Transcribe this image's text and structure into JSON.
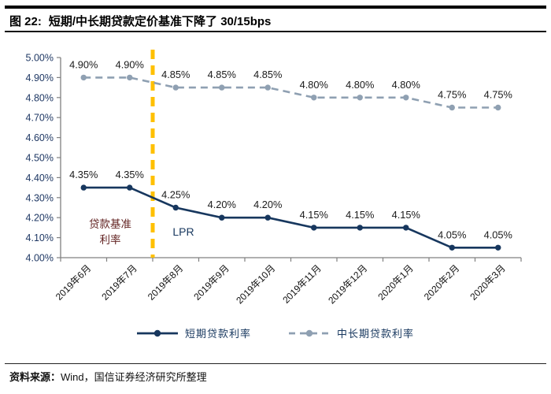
{
  "header": {
    "figure_label": "图 22:",
    "title": "短期/中长期贷款定价基准下降了 30/15bps"
  },
  "chart_data": {
    "type": "line",
    "categories": [
      "2019年6月",
      "2019年7月",
      "2019年8月",
      "2019年9月",
      "2019年10月",
      "2019年11月",
      "2019年12月",
      "2020年1月",
      "2020年2月",
      "2020年3月"
    ],
    "series": [
      {
        "name": "短期贷款利率",
        "color": "#17375E",
        "line_style": "solid",
        "values": [
          4.35,
          4.35,
          4.25,
          4.2,
          4.2,
          4.15,
          4.15,
          4.15,
          4.05,
          4.05
        ]
      },
      {
        "name": "中长期贷款利率",
        "color": "#8FA0B2",
        "line_style": "dashed",
        "values": [
          4.9,
          4.9,
          4.85,
          4.85,
          4.85,
          4.8,
          4.8,
          4.8,
          4.75,
          4.75
        ]
      }
    ],
    "ylim": [
      4.0,
      5.0
    ],
    "yticks": [
      "5.00%",
      "4.90%",
      "4.80%",
      "4.70%",
      "4.60%",
      "4.50%",
      "4.40%",
      "4.30%",
      "4.20%",
      "4.10%",
      "4.00%"
    ],
    "grid": false,
    "legend_position": "bottom",
    "data_labels_visible": true,
    "annotations": {
      "vline": {
        "after_category": "2019年7月",
        "color": "#FFC000"
      },
      "texts": [
        {
          "lines": [
            "贷款基准",
            "利率"
          ],
          "color": "#632423"
        },
        {
          "lines": [
            "LPR"
          ],
          "color": "#17375E"
        }
      ]
    },
    "axis_color": "#808080",
    "ytick_label_color": "#1F3864",
    "xtick_label_color": "#111111",
    "data_label_color": "#1A1A1A"
  },
  "footer": {
    "source_label": "资料来源：",
    "source_text": "Wind，国信证券经济研究所整理"
  }
}
